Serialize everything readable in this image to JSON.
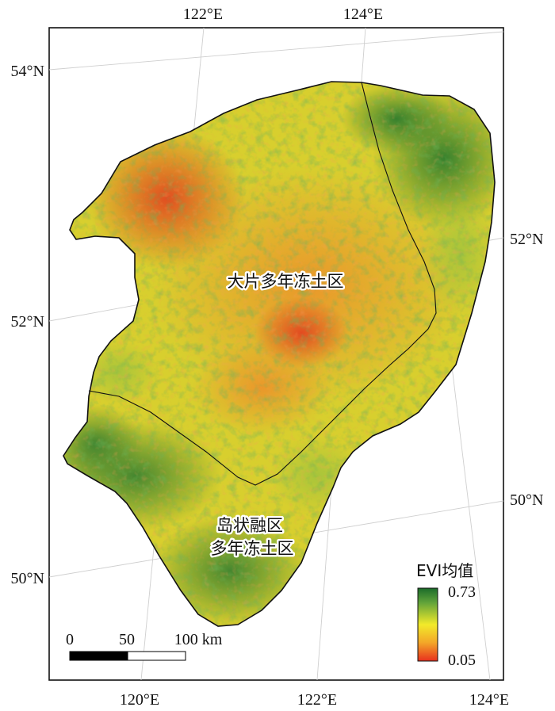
{
  "map": {
    "ticks": {
      "top": [
        "122°E",
        "124°E"
      ],
      "bottom": [
        "120°E",
        "122°E",
        "124°E"
      ],
      "left": [
        "54°N",
        "52°N",
        "50°N"
      ],
      "right": [
        "52°N",
        "50°N"
      ]
    },
    "zones": {
      "continuous": "大片多年冻土区",
      "island_line1": "岛状融区",
      "island_line2": "多年冻土区"
    },
    "legend": {
      "title": "EVI均值",
      "max": "0.73",
      "min": "0.05",
      "color_max": "#1a6b2a",
      "color_mid": "#f2ea2a",
      "color_min": "#e8301e"
    },
    "scale_bar": {
      "labels": [
        "0",
        "50",
        "100 km"
      ]
    }
  }
}
